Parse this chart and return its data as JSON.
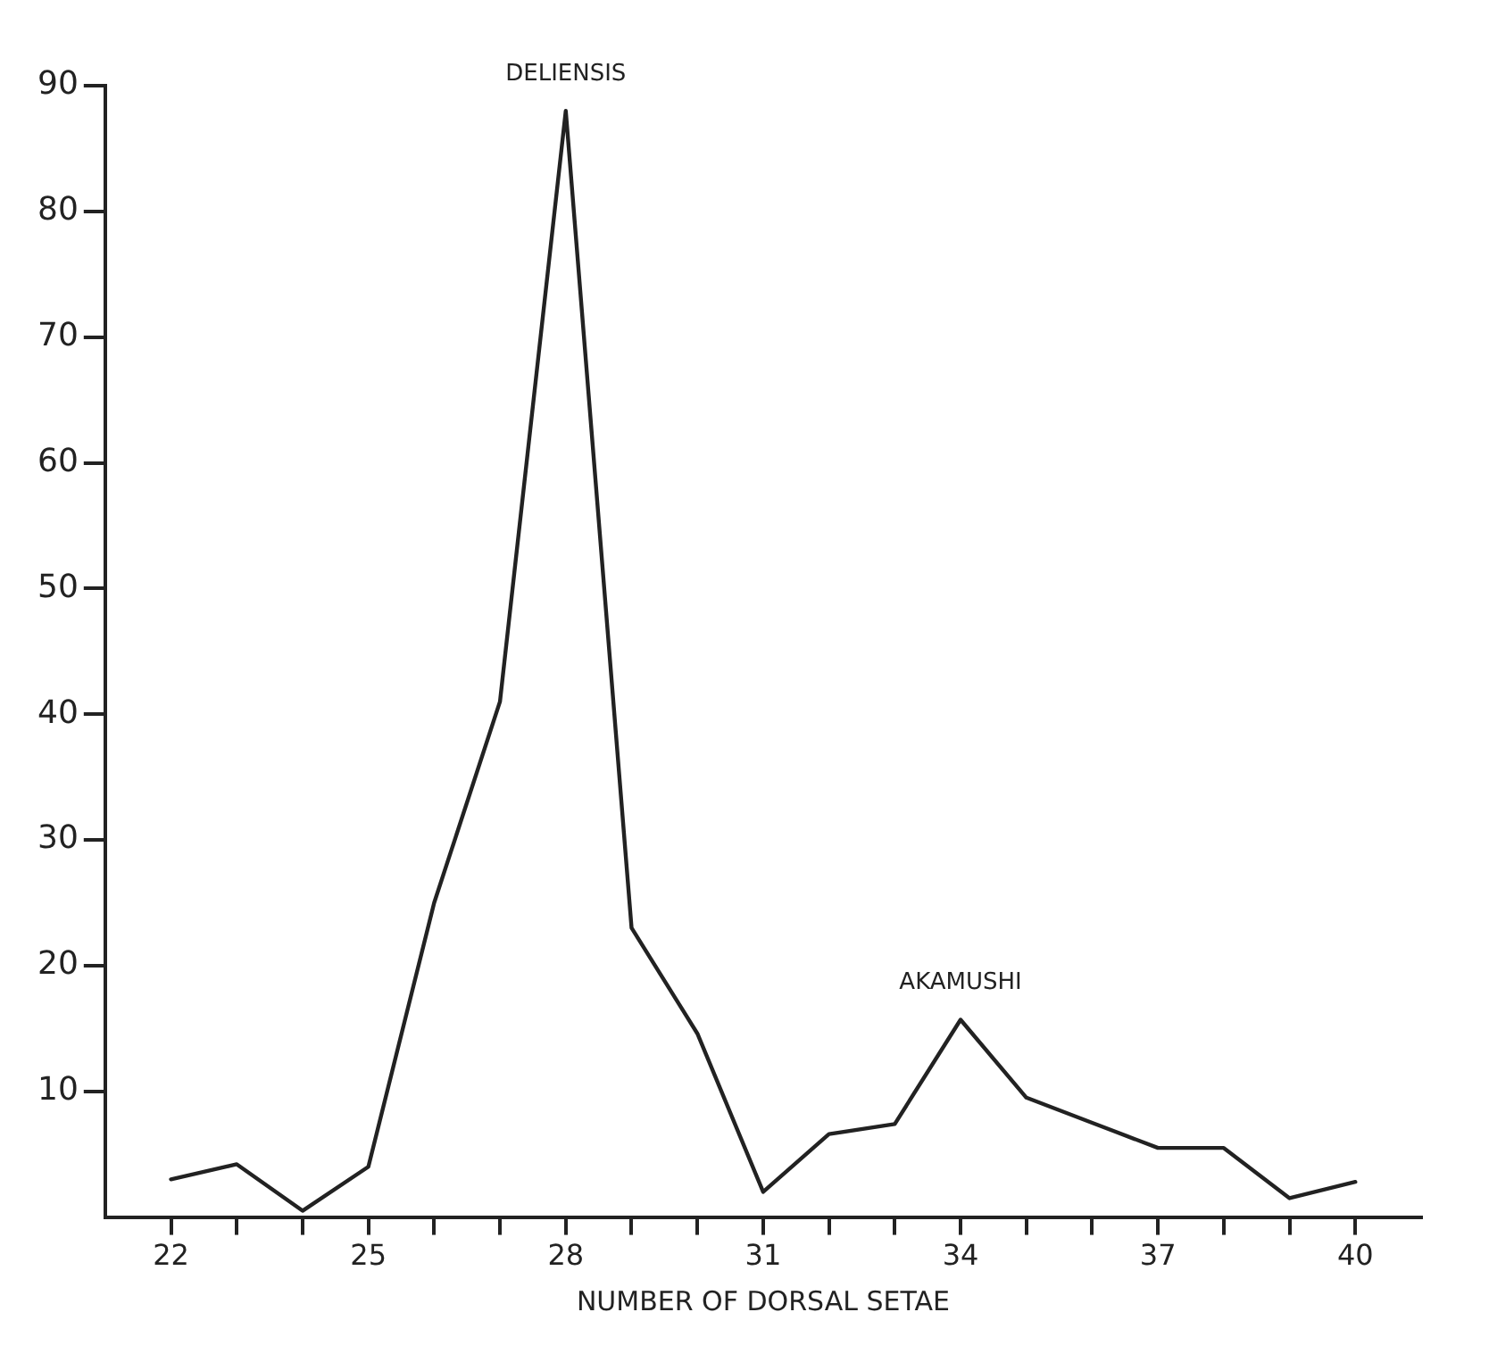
{
  "chart_data": {
    "type": "line",
    "xlabel": "NUMBER OF DORSAL SETAE",
    "x": [
      22,
      23,
      24,
      25,
      26,
      27,
      28,
      29,
      30,
      31,
      32,
      33,
      34,
      35,
      36,
      37,
      38,
      39,
      40
    ],
    "series": [
      {
        "color": "#222222",
        "values": [
          3,
          4.2,
          0.5,
          4,
          25,
          41,
          88,
          23,
          14.6,
          2,
          6.6,
          7.4,
          15.7,
          9.5,
          7.5,
          5.5,
          5.5,
          1.5,
          2.8
        ]
      }
    ],
    "annotations": [
      {
        "text": "DELIENSIS",
        "x": 28,
        "y": 88
      },
      {
        "text": "AKAMUSHI",
        "x": 34,
        "y": 15.7
      }
    ],
    "xlim": [
      21,
      41
    ],
    "xticks": [
      22,
      {
        "value": 23,
        "label": null
      },
      {
        "value": 24,
        "label": null
      },
      25,
      {
        "value": 26,
        "label": null
      },
      {
        "value": 27,
        "label": null
      },
      28,
      {
        "value": 29,
        "label": null
      },
      {
        "value": 30,
        "label": null
      },
      31,
      {
        "value": 32,
        "label": null
      },
      {
        "value": 33,
        "label": null
      },
      34,
      {
        "value": 35,
        "label": null
      },
      {
        "value": 36,
        "label": null
      },
      37,
      {
        "value": 38,
        "label": null
      },
      {
        "value": 39,
        "label": null
      },
      40
    ],
    "ylim": [
      0,
      90
    ],
    "yticks": [
      10,
      20,
      30,
      40,
      50,
      60,
      70,
      80,
      90
    ],
    "grid": false,
    "legend": false,
    "marker": "none",
    "line_style": "solid"
  }
}
